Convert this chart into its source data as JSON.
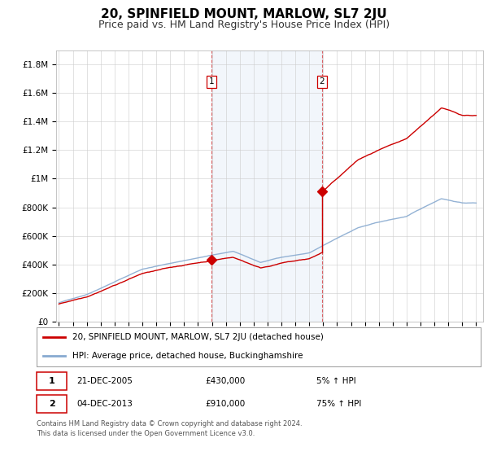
{
  "title": "20, SPINFIELD MOUNT, MARLOW, SL7 2JU",
  "subtitle": "Price paid vs. HM Land Registry's House Price Index (HPI)",
  "title_fontsize": 11,
  "subtitle_fontsize": 9,
  "ylabel_ticks": [
    "£0",
    "£200K",
    "£400K",
    "£600K",
    "£800K",
    "£1M",
    "£1.2M",
    "£1.4M",
    "£1.6M",
    "£1.8M"
  ],
  "ytick_values": [
    0,
    200000,
    400000,
    600000,
    800000,
    1000000,
    1200000,
    1400000,
    1600000,
    1800000
  ],
  "ylim": [
    0,
    1900000
  ],
  "xlim_start": 1994.8,
  "xlim_end": 2025.5,
  "sale1_x": 2005.97,
  "sale1_y": 430000,
  "sale2_x": 2013.92,
  "sale2_y": 910000,
  "sale1_label": "1",
  "sale2_label": "2",
  "sale_color": "#cc0000",
  "hpi_color": "#88aad0",
  "property_line_color": "#cc0000",
  "background_color": "#ffffff",
  "plot_bg_color": "#ffffff",
  "grid_color": "#cccccc",
  "shade_color_between_sales": "#dce8f5",
  "legend_line1": "20, SPINFIELD MOUNT, MARLOW, SL7 2JU (detached house)",
  "legend_line2": "HPI: Average price, detached house, Buckinghamshire",
  "note1_label": "1",
  "note1_date": "21-DEC-2005",
  "note1_price": "£430,000",
  "note1_pct": "5% ↑ HPI",
  "note2_label": "2",
  "note2_date": "04-DEC-2013",
  "note2_price": "£910,000",
  "note2_pct": "75% ↑ HPI",
  "footer": "Contains HM Land Registry data © Crown copyright and database right 2024.\nThis data is licensed under the Open Government Licence v3.0."
}
